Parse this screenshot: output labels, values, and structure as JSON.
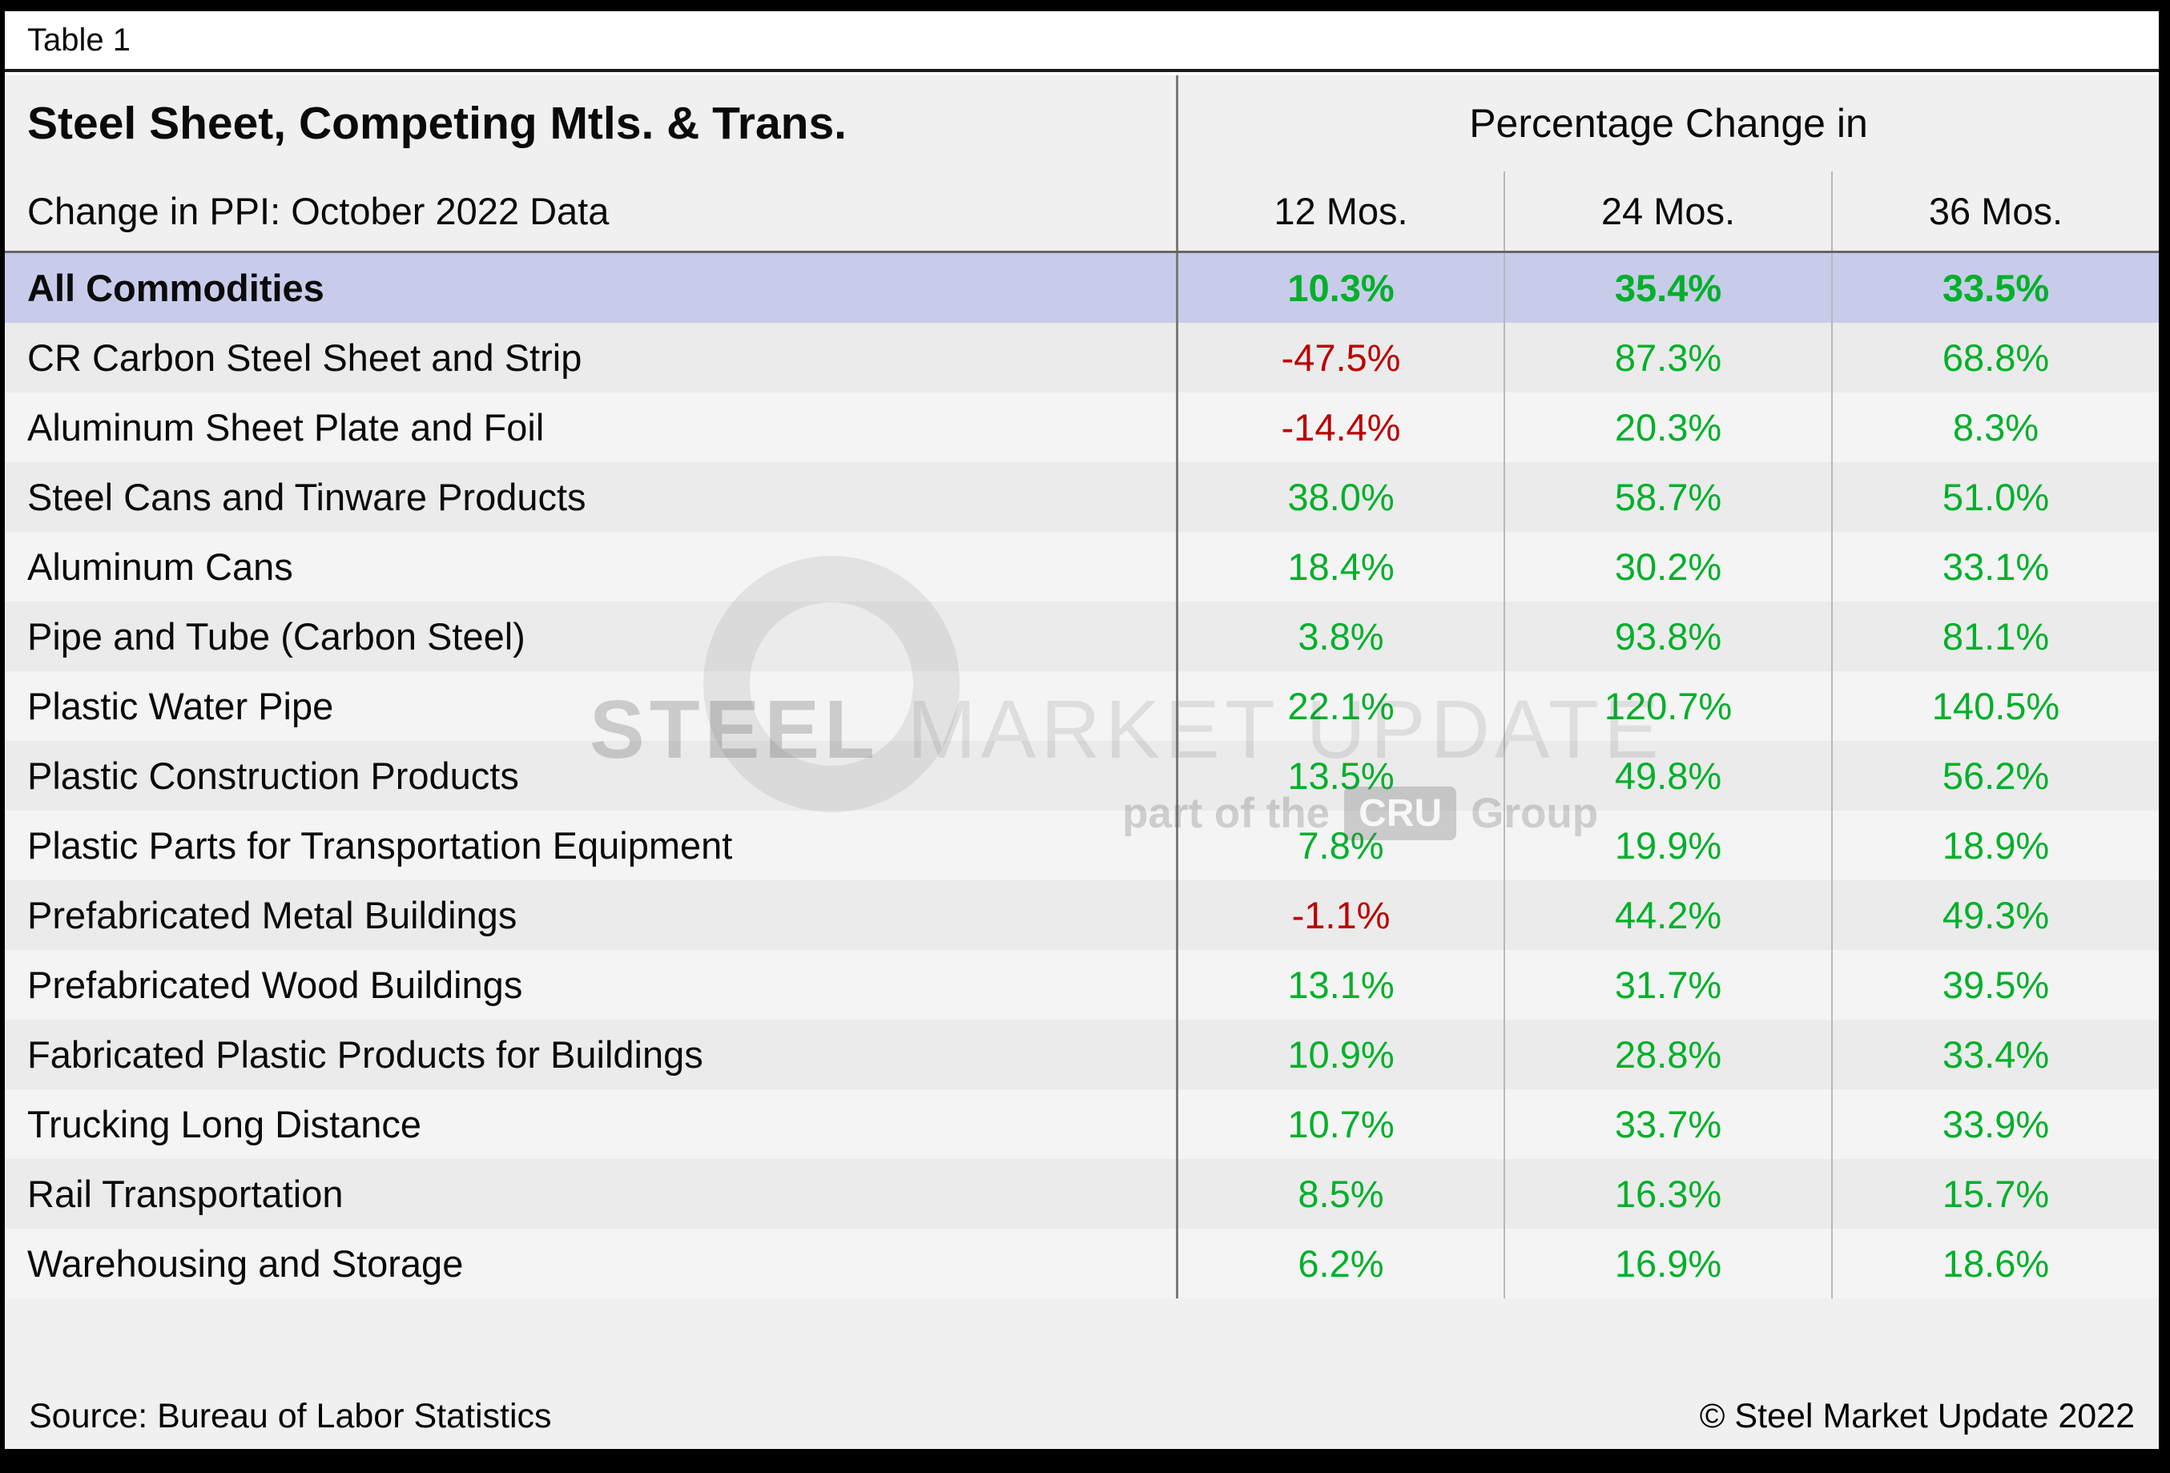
{
  "tab": {
    "label": "Table 1"
  },
  "chart_data": {
    "type": "table",
    "title": "Steel Sheet, Competing Mtls. & Trans.",
    "subtitle": "Change in PPI: October 2022 Data",
    "group_header": "Percentage Change in",
    "columns": [
      "12 Mos.",
      "24 Mos.",
      "36 Mos."
    ],
    "rows": [
      {
        "label": "All Commodities",
        "values": [
          "10.3%",
          "35.4%",
          "33.5%"
        ],
        "numeric": [
          10.3,
          35.4,
          33.5
        ],
        "highlight": true
      },
      {
        "label": "CR Carbon Steel Sheet and Strip",
        "values": [
          "-47.5%",
          "87.3%",
          "68.8%"
        ],
        "numeric": [
          -47.5,
          87.3,
          68.8
        ],
        "highlight": false
      },
      {
        "label": "Aluminum Sheet Plate and Foil",
        "values": [
          "-14.4%",
          "20.3%",
          "8.3%"
        ],
        "numeric": [
          -14.4,
          20.3,
          8.3
        ],
        "highlight": false
      },
      {
        "label": "Steel Cans and Tinware Products",
        "values": [
          "38.0%",
          "58.7%",
          "51.0%"
        ],
        "numeric": [
          38.0,
          58.7,
          51.0
        ],
        "highlight": false
      },
      {
        "label": "Aluminum Cans",
        "values": [
          "18.4%",
          "30.2%",
          "33.1%"
        ],
        "numeric": [
          18.4,
          30.2,
          33.1
        ],
        "highlight": false
      },
      {
        "label": "Pipe and Tube (Carbon Steel)",
        "values": [
          "3.8%",
          "93.8%",
          "81.1%"
        ],
        "numeric": [
          3.8,
          93.8,
          81.1
        ],
        "highlight": false
      },
      {
        "label": "Plastic Water Pipe",
        "values": [
          "22.1%",
          "120.7%",
          "140.5%"
        ],
        "numeric": [
          22.1,
          120.7,
          140.5
        ],
        "highlight": false
      },
      {
        "label": "Plastic Construction Products",
        "values": [
          "13.5%",
          "49.8%",
          "56.2%"
        ],
        "numeric": [
          13.5,
          49.8,
          56.2
        ],
        "highlight": false
      },
      {
        "label": "Plastic Parts for Transportation Equipment",
        "values": [
          "7.8%",
          "19.9%",
          "18.9%"
        ],
        "numeric": [
          7.8,
          19.9,
          18.9
        ],
        "highlight": false
      },
      {
        "label": "Prefabricated Metal Buildings",
        "values": [
          "-1.1%",
          "44.2%",
          "49.3%"
        ],
        "numeric": [
          -1.1,
          44.2,
          49.3
        ],
        "highlight": false
      },
      {
        "label": "Prefabricated Wood Buildings",
        "values": [
          "13.1%",
          "31.7%",
          "39.5%"
        ],
        "numeric": [
          13.1,
          31.7,
          39.5
        ],
        "highlight": false
      },
      {
        "label": "Fabricated Plastic Products for Buildings",
        "values": [
          "10.9%",
          "28.8%",
          "33.4%"
        ],
        "numeric": [
          10.9,
          28.8,
          33.4
        ],
        "highlight": false
      },
      {
        "label": "Trucking Long Distance",
        "values": [
          "10.7%",
          "33.7%",
          "33.9%"
        ],
        "numeric": [
          10.7,
          33.7,
          33.9
        ],
        "highlight": false
      },
      {
        "label": "Rail Transportation",
        "values": [
          "8.5%",
          "16.3%",
          "15.7%"
        ],
        "numeric": [
          8.5,
          16.3,
          15.7
        ],
        "highlight": false
      },
      {
        "label": "Warehousing and Storage",
        "values": [
          "6.2%",
          "16.9%",
          "18.6%"
        ],
        "numeric": [
          6.2,
          16.9,
          18.6
        ],
        "highlight": false
      }
    ]
  },
  "footer": {
    "source": "Source: Bureau of Labor Statistics",
    "copyright": "© Steel Market Update 2022"
  },
  "watermark": {
    "brand_bold": "STEEL",
    "brand_light": "MARKET UPDATE",
    "tagline_prefix": "part of the",
    "tagline_badge": "CRU",
    "tagline_suffix": "Group"
  },
  "colors": {
    "positive_value": "#00b02a",
    "negative_value": "#bb0000",
    "highlight_row": "#c8ccea",
    "row_shade_a": "#ebebeb",
    "row_shade_b": "#f4f4f4"
  }
}
